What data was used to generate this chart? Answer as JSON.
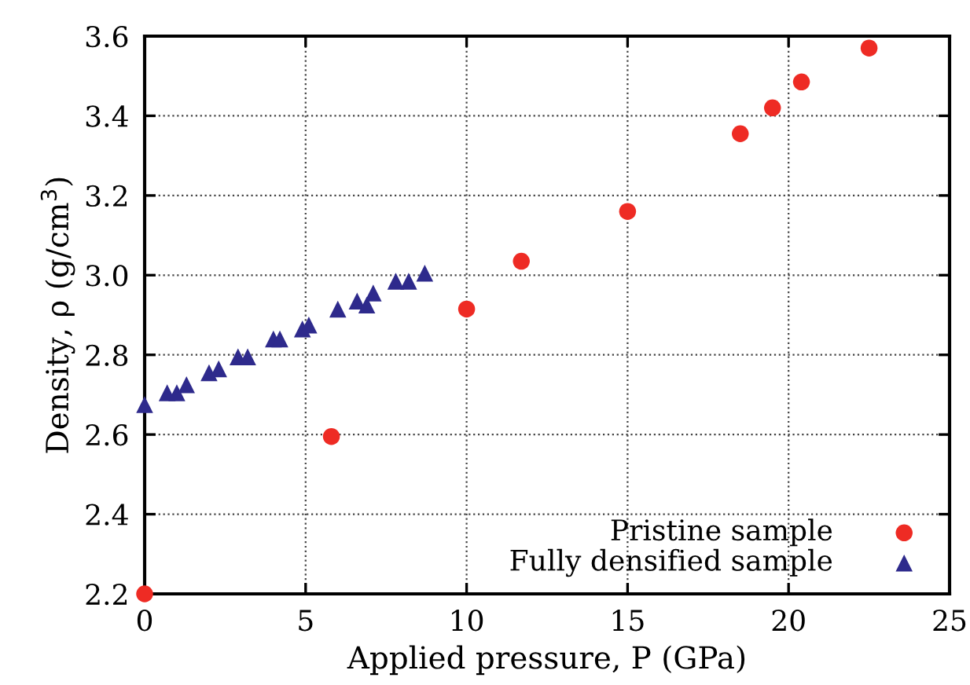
{
  "chart_data": {
    "type": "scatter",
    "xlabel": "Applied pressure, P (GPa)",
    "ylabel": "Density, ρ (g/cm$^{3}$)",
    "xlim": [
      0,
      25
    ],
    "ylim": [
      2.2,
      3.6
    ],
    "xticks": [
      0,
      5,
      10,
      15,
      20,
      25
    ],
    "yticks": [
      2.2,
      2.4,
      2.6,
      2.8,
      {
        "value": 3,
        "label": "3.0"
      },
      3.2,
      3.4,
      3.6
    ],
    "grid": true,
    "legend": "bottom right",
    "series": [
      {
        "name": "Pristine sample",
        "color": "#ee2b24",
        "marker": "circle",
        "x": [
          0,
          5.8,
          10,
          11.7,
          15,
          18.5,
          19.5,
          20.4,
          22.5
        ],
        "values": [
          2.2,
          2.595,
          2.915,
          3.035,
          3.16,
          3.355,
          3.42,
          3.485,
          3.57
        ]
      },
      {
        "name": "Fully densified sample",
        "color": "#2e2a8c",
        "marker": "triangle",
        "x": [
          0,
          0.7,
          1.0,
          1.3,
          2.0,
          2.3,
          2.9,
          3.2,
          4.0,
          4.2,
          4.9,
          5.1,
          6.0,
          6.6,
          6.9,
          7.1,
          7.8,
          8.2,
          8.7
        ],
        "values": [
          2.675,
          2.705,
          2.705,
          2.725,
          2.755,
          2.765,
          2.795,
          2.795,
          2.84,
          2.84,
          2.865,
          2.875,
          2.915,
          2.935,
          2.925,
          2.955,
          2.985,
          2.985,
          3.005
        ]
      }
    ]
  }
}
